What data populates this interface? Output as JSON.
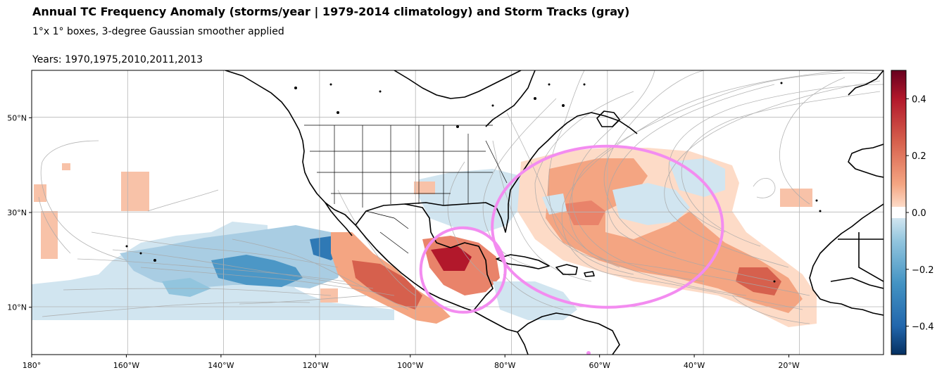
{
  "title": "Annual TC Frequency Anomaly (storms/year | 1979-2014 climatology) and Storm Tracks (gray)",
  "subtitle": "1°x 1°  boxes, 3-degree Gaussian smoother applied",
  "years_label": "Years: 1970,1975,2010,2011,2013",
  "map": {
    "projection": "PlateCarree",
    "lon_range": [
      -180,
      0
    ],
    "lat_range": [
      0,
      60
    ],
    "x_ticks": [
      {
        "lon": -180,
        "label": "180°"
      },
      {
        "lon": -160,
        "label": "160°W"
      },
      {
        "lon": -140,
        "label": "140°W"
      },
      {
        "lon": -120,
        "label": "120°W"
      },
      {
        "lon": -100,
        "label": "100°W"
      },
      {
        "lon": -80,
        "label": "80°W"
      },
      {
        "lon": -60,
        "label": "60°W"
      },
      {
        "lon": -40,
        "label": "40°W"
      },
      {
        "lon": -20,
        "label": "20°W"
      }
    ],
    "y_ticks": [
      {
        "lat": 10,
        "label": "10°N"
      },
      {
        "lat": 30,
        "label": "30°N"
      },
      {
        "lat": 50,
        "label": "50°N"
      }
    ],
    "grid": true,
    "track_color": "#a8a8a8",
    "highlight_color": "#f38cf0",
    "highlights": [
      {
        "shape": "circle",
        "center_lon": -89,
        "center_lat": 17.5,
        "radius_deg": 10
      },
      {
        "shape": "ellipse",
        "center_lon": -58,
        "center_lat": 26.5,
        "radius_lon_deg": 24,
        "radius_lat_deg": 17
      }
    ]
  },
  "colorbar": {
    "range": [
      -0.5,
      0.5
    ],
    "ticks": [
      {
        "value": 0.4,
        "label": "0.4"
      },
      {
        "value": 0.2,
        "label": "0.2"
      },
      {
        "value": 0.0,
        "label": "0.0"
      },
      {
        "value": -0.2,
        "label": "−0.2"
      },
      {
        "value": -0.4,
        "label": "−0.4"
      }
    ],
    "colors": {
      "deep_red": "#67001f",
      "red": "#d6604d",
      "light_red": "#f4a582",
      "white": "#ffffff",
      "light_blue": "#92c5de",
      "blue": "#4393c3",
      "deep_blue": "#053061"
    }
  }
}
